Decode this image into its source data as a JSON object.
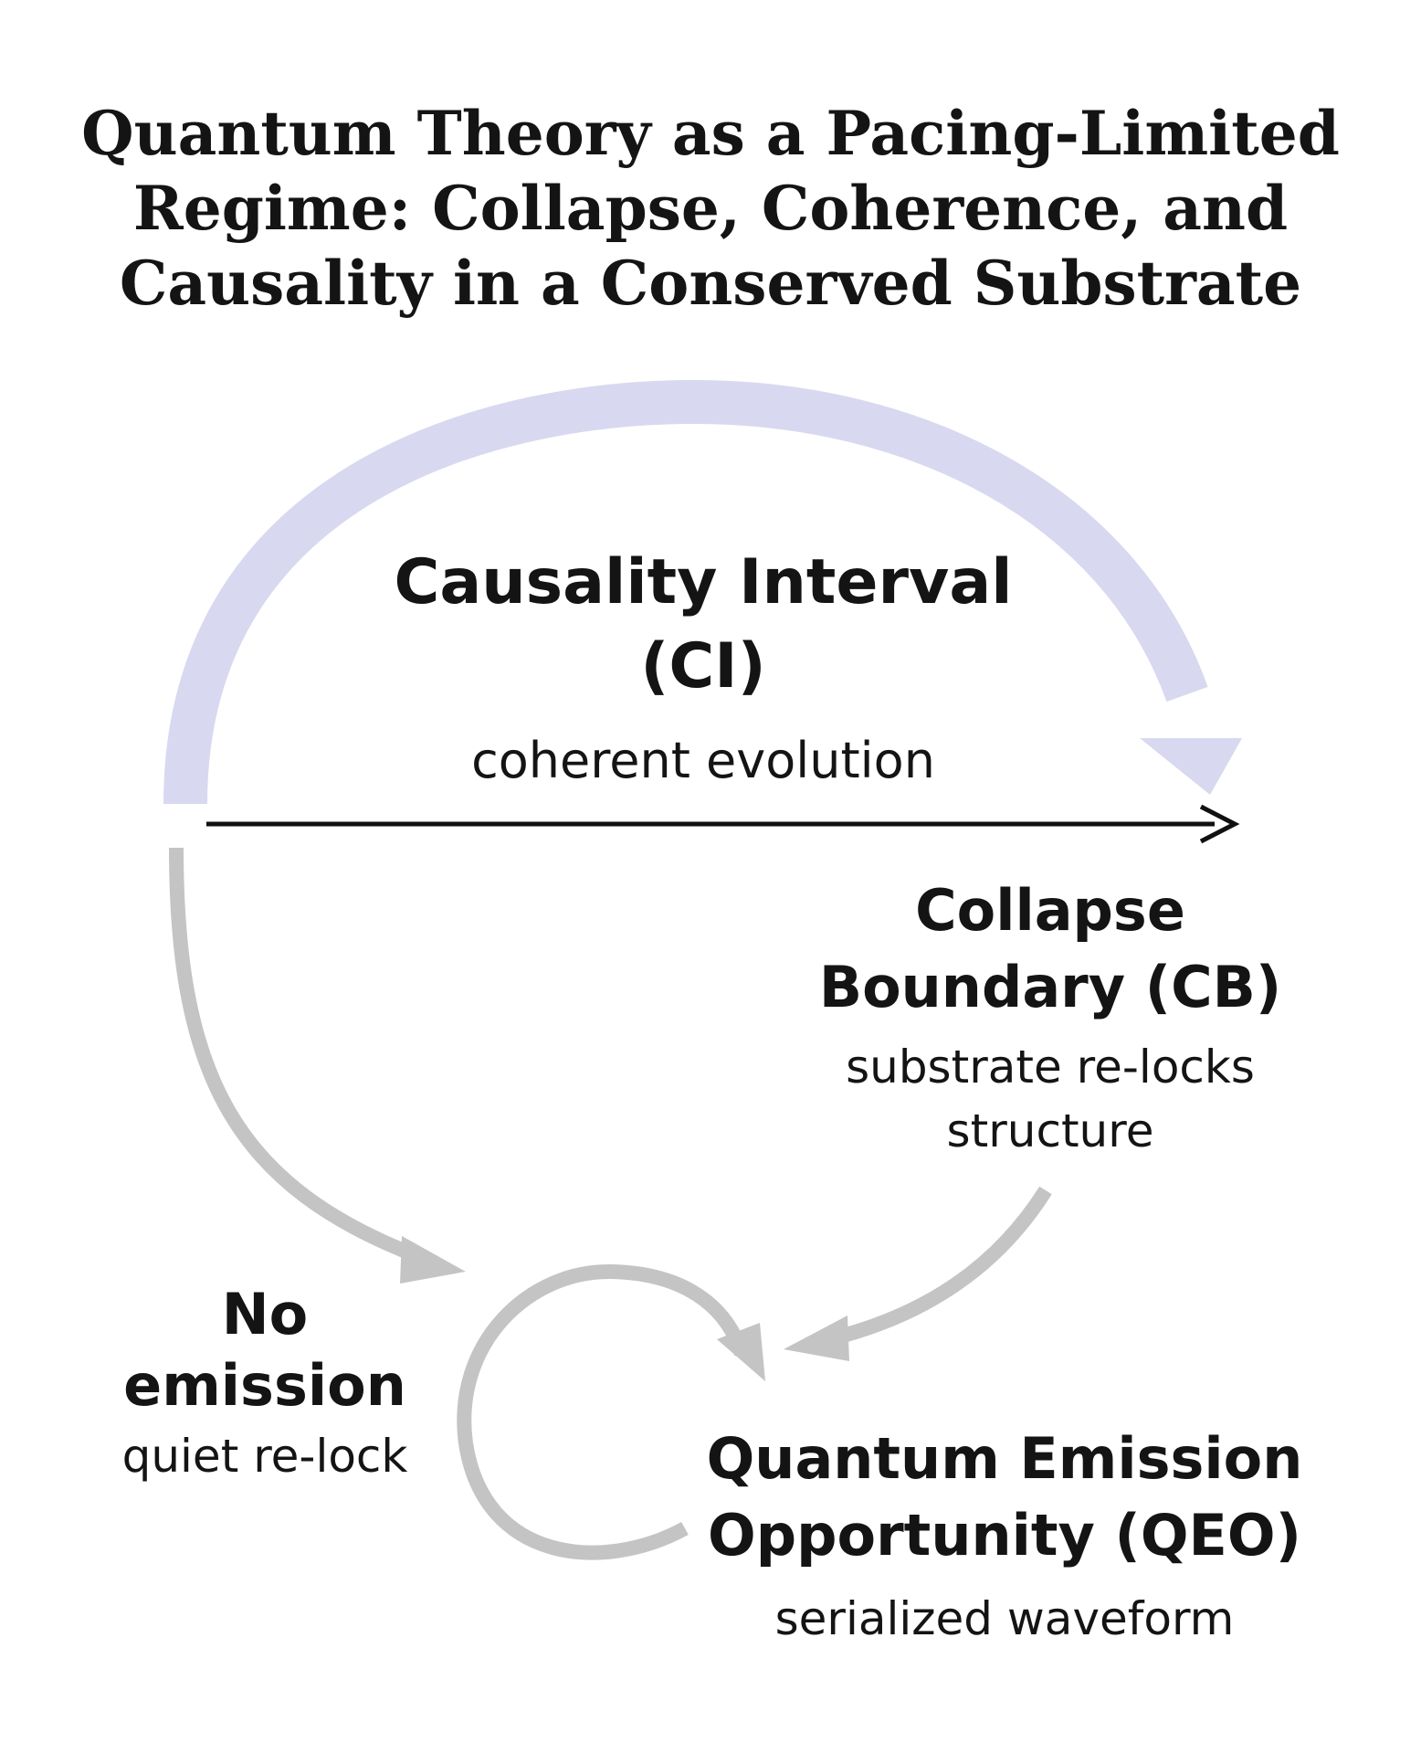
{
  "title": {
    "line1": "Quantum Theory as a Pacing-Limited",
    "line2": "Regime: Collapse, Coherence, and",
    "line3": "Causality in a Conserved Substrate"
  },
  "nodes": {
    "causality_interval": {
      "name_line1": "Causality Interval",
      "name_line2": "(CI)",
      "description": "coherent evolution"
    },
    "collapse_boundary": {
      "name_line1": "Collapse",
      "name_line2": "Boundary (CB)",
      "description_line1": "substrate re-locks",
      "description_line2": "structure"
    },
    "no_emission": {
      "name_line1": "No",
      "name_line2": "emission",
      "description": "quiet re-lock"
    },
    "quantum_emission_opportunity": {
      "name_line1": "Quantum Emission",
      "name_line2": "Opportunity (QEO)",
      "description": "serialized waveform"
    }
  },
  "colors": {
    "cycle_arc": "#d8d8f0",
    "gray_arrows": "#c4c4c4",
    "timeline_arrow": "#111111",
    "text": "#141414"
  }
}
